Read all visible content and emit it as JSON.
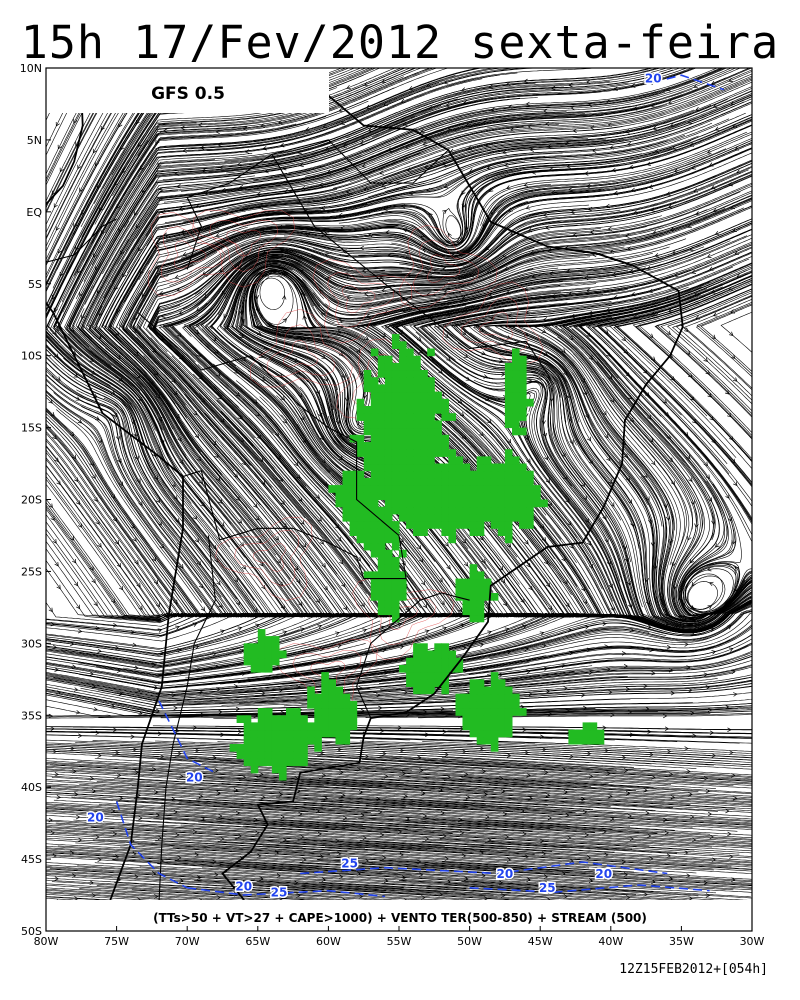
{
  "title": "15h 17/Fev/2012 sexta-feira",
  "model_label": "GFS 0.5",
  "legend": "(TTs>50 + VT>27 + CAPE>1000) + VENTO TER(500-850) + STREAM (500)",
  "footer": "12Z15FEB2012+[054h]",
  "lat_ticks": [
    "10N",
    "5N",
    "EQ",
    "5S",
    "10S",
    "15S",
    "20S",
    "25S",
    "30S",
    "35S",
    "40S",
    "45S",
    "50S"
  ],
  "lon_ticks": [
    "80W",
    "75W",
    "70W",
    "65W",
    "60W",
    "55W",
    "50W",
    "45W",
    "40W",
    "35W",
    "30W"
  ],
  "extent": {
    "lon": [
      -80,
      -30
    ],
    "lat": [
      -50,
      10
    ]
  },
  "contour_labels": [
    "20",
    "20",
    "20",
    "25",
    "20",
    "25",
    "20",
    "25",
    "20"
  ],
  "colors": {
    "convection": "#22bb22",
    "jet_contour": "#2244ee",
    "cape_contour": "#dd4444",
    "streamline": "#000000"
  }
}
